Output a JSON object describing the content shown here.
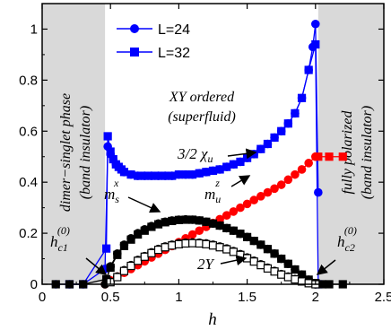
{
  "chart_data": {
    "type": "scatter",
    "xlabel": "h",
    "ylabel": "",
    "xlim": [
      0,
      2.5
    ],
    "ylim": [
      0,
      1.1
    ],
    "xticks": [
      "0",
      "0.5",
      "1",
      "1.5",
      "2",
      "2.5"
    ],
    "yticks": [
      "0",
      "0.2",
      "0.4",
      "0.6",
      "0.8",
      "1"
    ],
    "legend": {
      "placement": "top-left",
      "entries": [
        {
          "label": "L=24",
          "color": "#0000ff",
          "marker": "circle"
        },
        {
          "label": "L=32",
          "color": "#0000ff",
          "marker": "square"
        }
      ]
    },
    "regions": [
      {
        "x_range": [
          0,
          0.46
        ],
        "color": "#d9d9d9",
        "lines": [
          "dimer−singlet phase",
          "(band insulator)"
        ]
      },
      {
        "x_range": [
          2.02,
          2.5
        ],
        "color": "#d9d9d9",
        "lines": [
          "fully polarized",
          "(band insulator)"
        ]
      }
    ],
    "center_text": [
      "XY ordered",
      "(superfluid)"
    ],
    "annotations": [
      {
        "text": "3/2 χu",
        "x": 1.22,
        "y": 0.52
      },
      {
        "text": "ms",
        "sup": "x",
        "x": 0.52,
        "y": 0.3
      },
      {
        "text": "mu",
        "sup": "z",
        "x": 1.05,
        "y": 0.3
      },
      {
        "text": "2Υ",
        "x": 1.1,
        "y": 0.085
      },
      {
        "text": "hc1",
        "sup": "(0)",
        "x": 0.1,
        "y": 0.07
      },
      {
        "text": "hc2",
        "sup": "(0)",
        "x": 2.12,
        "y": 0.07
      }
    ],
    "series": [
      {
        "name": "L=24",
        "color": "#0000ff",
        "marker": "circle",
        "fill": true,
        "x": [
          0.1,
          0.2,
          0.3,
          0.46,
          0.48,
          0.5,
          0.52,
          0.54,
          0.56,
          0.58,
          0.6,
          0.65,
          0.7,
          0.75,
          0.8,
          0.85,
          0.9,
          0.95,
          1.0,
          1.05,
          1.1,
          1.15,
          1.2,
          1.25,
          1.3,
          1.35,
          1.4,
          1.45,
          1.5,
          1.55,
          1.6,
          1.65,
          1.7,
          1.75,
          1.8,
          1.85,
          1.9,
          1.95,
          1.98,
          2.0,
          2.02
        ],
        "y": [
          0.0,
          0.0,
          0.0,
          0.06,
          0.54,
          0.51,
          0.49,
          0.47,
          0.46,
          0.45,
          0.44,
          0.43,
          0.425,
          0.425,
          0.425,
          0.425,
          0.425,
          0.425,
          0.43,
          0.43,
          0.43,
          0.435,
          0.44,
          0.445,
          0.45,
          0.46,
          0.47,
          0.48,
          0.495,
          0.51,
          0.53,
          0.55,
          0.575,
          0.6,
          0.63,
          0.67,
          0.73,
          0.84,
          0.93,
          1.02,
          0.36
        ]
      },
      {
        "name": "L=32",
        "color": "#0000ff",
        "marker": "square",
        "fill": true,
        "x": [
          0.2,
          0.3,
          0.47,
          0.48,
          0.5,
          0.52,
          0.54,
          0.56,
          0.58,
          0.6,
          0.65,
          0.7,
          0.75,
          0.8,
          0.85,
          0.9,
          0.95,
          1.0,
          1.05,
          1.1,
          1.15,
          1.2,
          1.25,
          1.3,
          1.35,
          1.4,
          1.45,
          1.5,
          1.55,
          1.6,
          1.65,
          1.7,
          1.75,
          1.8,
          1.85,
          1.9,
          1.95,
          2.0,
          2.02
        ],
        "y": [
          0.0,
          0.0,
          0.14,
          0.58,
          0.52,
          0.49,
          0.47,
          0.46,
          0.45,
          0.44,
          0.43,
          0.425,
          0.425,
          0.425,
          0.425,
          0.425,
          0.425,
          0.43,
          0.43,
          0.43,
          0.435,
          0.44,
          0.445,
          0.45,
          0.46,
          0.47,
          0.48,
          0.495,
          0.51,
          0.53,
          0.55,
          0.575,
          0.6,
          0.63,
          0.67,
          0.73,
          0.84,
          0.94,
          0.0
        ]
      },
      {
        "color": "#ff0000",
        "marker": "circle",
        "fill": true,
        "x": [
          0.46,
          0.5,
          0.55,
          0.6,
          0.65,
          0.7,
          0.75,
          0.8,
          0.85,
          0.9,
          0.95,
          1.0,
          1.05,
          1.1,
          1.15,
          1.2,
          1.25,
          1.3,
          1.35,
          1.4,
          1.45,
          1.5,
          1.55,
          1.6,
          1.65,
          1.7,
          1.75,
          1.8,
          1.85,
          1.9,
          1.95,
          2.0
        ],
        "y": [
          0.0,
          0.015,
          0.03,
          0.045,
          0.06,
          0.075,
          0.09,
          0.105,
          0.12,
          0.135,
          0.15,
          0.165,
          0.18,
          0.195,
          0.21,
          0.225,
          0.24,
          0.255,
          0.27,
          0.285,
          0.3,
          0.315,
          0.33,
          0.345,
          0.36,
          0.375,
          0.39,
          0.41,
          0.43,
          0.45,
          0.475,
          0.5
        ]
      },
      {
        "color": "#ff0000",
        "marker": "square",
        "fill": true,
        "x": [
          2.02,
          2.1,
          2.2
        ],
        "y": [
          0.5,
          0.5,
          0.5
        ]
      },
      {
        "color": "#000000",
        "marker": "circle",
        "fill": true,
        "x": [
          0.46,
          0.5,
          0.55,
          0.6,
          0.65,
          0.7,
          0.75,
          0.8,
          0.85,
          0.9,
          0.95,
          1.0,
          1.05,
          1.1,
          1.15,
          1.2,
          1.25,
          1.3,
          1.35,
          1.4,
          1.45,
          1.5,
          1.55,
          1.6,
          1.65,
          1.7,
          1.75,
          1.8,
          1.85,
          1.9,
          1.95,
          2.0
        ],
        "y": [
          0.0,
          0.07,
          0.12,
          0.155,
          0.18,
          0.2,
          0.215,
          0.228,
          0.238,
          0.245,
          0.25,
          0.253,
          0.254,
          0.253,
          0.25,
          0.245,
          0.238,
          0.23,
          0.22,
          0.21,
          0.198,
          0.185,
          0.17,
          0.155,
          0.138,
          0.12,
          0.1,
          0.08,
          0.058,
          0.038,
          0.018,
          0.0
        ]
      },
      {
        "color": "#000000",
        "marker": "square",
        "fill": true,
        "x": [
          0.1,
          0.2,
          0.3,
          0.47,
          0.5,
          0.55,
          0.6,
          0.65,
          0.7,
          0.75,
          0.8,
          0.85,
          0.9,
          0.95,
          1.0,
          1.05,
          1.1,
          1.15,
          1.2,
          1.25,
          1.3,
          1.35,
          1.4,
          1.45,
          1.5,
          1.55,
          1.6,
          1.65,
          1.7,
          1.75,
          1.8,
          1.85,
          1.9,
          1.95,
          2.0,
          2.05,
          2.1,
          2.2
        ],
        "y": [
          0.0,
          0.0,
          0.0,
          0.02,
          0.065,
          0.115,
          0.15,
          0.175,
          0.195,
          0.21,
          0.225,
          0.235,
          0.243,
          0.248,
          0.252,
          0.253,
          0.253,
          0.25,
          0.245,
          0.238,
          0.23,
          0.22,
          0.21,
          0.198,
          0.185,
          0.17,
          0.155,
          0.138,
          0.12,
          0.1,
          0.08,
          0.058,
          0.038,
          0.018,
          0.005,
          0.0,
          0.0,
          0.0
        ]
      },
      {
        "color": "#000000",
        "marker": "circle",
        "fill": false,
        "x": [
          0.5,
          0.55,
          0.6,
          0.65,
          0.7,
          0.75,
          0.8,
          0.85,
          0.9,
          0.95,
          1.0,
          1.05,
          1.1,
          1.15,
          1.2,
          1.25,
          1.3,
          1.35,
          1.4,
          1.45,
          1.5,
          1.55,
          1.6,
          1.65,
          1.7,
          1.75,
          1.8,
          1.85,
          1.9,
          1.95,
          2.0
        ],
        "y": [
          0.01,
          0.03,
          0.055,
          0.075,
          0.095,
          0.11,
          0.125,
          0.138,
          0.148,
          0.155,
          0.16,
          0.163,
          0.164,
          0.163,
          0.16,
          0.155,
          0.148,
          0.14,
          0.13,
          0.118,
          0.105,
          0.092,
          0.078,
          0.065,
          0.052,
          0.04,
          0.03,
          0.02,
          0.012,
          0.005,
          0.0
        ]
      },
      {
        "color": "#000000",
        "marker": "square",
        "fill": false,
        "x": [
          0.5,
          0.55,
          0.6,
          0.65,
          0.7,
          0.75,
          0.8,
          0.85,
          0.9,
          0.95,
          1.0,
          1.05,
          1.1,
          1.15,
          1.2,
          1.25,
          1.3,
          1.35,
          1.4,
          1.45,
          1.5,
          1.55,
          1.6,
          1.65,
          1.7,
          1.75,
          1.8,
          1.85,
          1.9,
          1.95,
          2.0
        ],
        "y": [
          0.008,
          0.028,
          0.052,
          0.072,
          0.092,
          0.108,
          0.122,
          0.135,
          0.145,
          0.152,
          0.157,
          0.16,
          0.161,
          0.16,
          0.157,
          0.152,
          0.145,
          0.137,
          0.127,
          0.115,
          0.102,
          0.089,
          0.075,
          0.062,
          0.05,
          0.038,
          0.028,
          0.019,
          0.011,
          0.004,
          0.0
        ]
      }
    ]
  }
}
